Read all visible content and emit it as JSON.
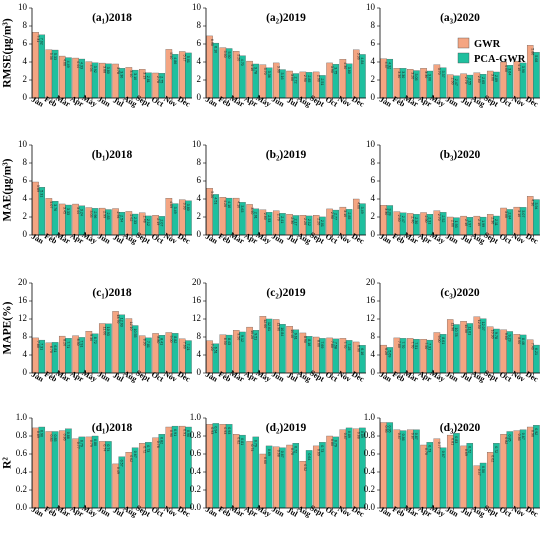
{
  "legend": {
    "gwr_label": "GWR",
    "pca_label": "PCA-GWR",
    "gwr_color": "#F4A582",
    "pca_color": "#1FBF9E"
  },
  "chart_data": {
    "type": "bar",
    "categories": [
      "Jan",
      "Feb",
      "Mar",
      "Apr",
      "May",
      "Jun",
      "Jul",
      "Aug",
      "Sept",
      "Oct",
      "Nov",
      "Dec"
    ],
    "years": [
      "2018",
      "2019",
      "2020"
    ],
    "metrics": [
      {
        "ylabel": "RMSE(μg/m³)",
        "ylim": [
          0,
          10
        ],
        "yticks": [
          0,
          2,
          4,
          6,
          8,
          10
        ],
        "panels": [
          {
            "title": "(a₁)2018",
            "gwr": [
              7.31,
              5.36,
              4.66,
              4.44,
              4.04,
              3.88,
              3.78,
              3.4,
              3.19,
              2.78,
              5.4,
              5.17
            ],
            "pca": [
              7.02,
              5.33,
              4.49,
              4.33,
              3.92,
              3.8,
              3.3,
              3.1,
              2.81,
              2.75,
              4.86,
              5.01
            ]
          },
          {
            "title": "(a₂)2019",
            "gwr": [
              6.9,
              5.6,
              5.2,
              4.1,
              3.7,
              3.9,
              3.0,
              2.9,
              2.9,
              3.9,
              4.3,
              5.36
            ],
            "pca": [
              6.1,
              5.5,
              4.7,
              3.78,
              3.36,
              3.16,
              2.72,
              2.85,
              2.51,
              3.75,
              3.8,
              4.84
            ]
          },
          {
            "title": "(a₃)2020",
            "gwr": [
              4.37,
              3.3,
              3.2,
              3.3,
              3.7,
              2.6,
              2.7,
              2.8,
              3.0,
              4.0,
              4.1,
              5.86
            ],
            "pca": [
              4.32,
              3.3,
              3.05,
              3.0,
              3.37,
              2.47,
              2.55,
              2.65,
              2.89,
              3.64,
              3.9,
              5.08
            ]
          }
        ]
      },
      {
        "ylabel": "MAE(μg/m³)",
        "ylim": [
          0,
          10
        ],
        "yticks": [
          0,
          2,
          4,
          6,
          8,
          10
        ],
        "panels": [
          {
            "title": "(b₁)2018",
            "gwr": [
              5.89,
              4.07,
              3.45,
              3.44,
              3.05,
              2.99,
              2.94,
              2.62,
              2.48,
              2.19,
              4.09,
              3.93
            ],
            "pca": [
              5.31,
              3.76,
              3.33,
              3.24,
              2.96,
              2.83,
              2.54,
              2.33,
              2.12,
              2.07,
              3.49,
              3.8
            ]
          },
          {
            "title": "(b₂)2019",
            "gwr": [
              5.2,
              4.2,
              4.1,
              3.4,
              2.8,
              2.7,
              2.3,
              2.2,
              2.2,
              2.9,
              3.1,
              4.0
            ],
            "pca": [
              4.51,
              4.1,
              3.63,
              2.91,
              2.53,
              2.41,
              2.17,
              2.12,
              2.01,
              2.77,
              2.85,
              3.49
            ]
          },
          {
            "title": "(b₃)2020",
            "gwr": [
              3.3,
              2.6,
              2.4,
              2.5,
              2.7,
              2.0,
              2.1,
              2.1,
              2.3,
              3.0,
              3.1,
              4.3
            ],
            "pca": [
              3.28,
              2.47,
              2.3,
              2.31,
              2.52,
              1.93,
              1.97,
              1.99,
              2.11,
              2.84,
              3.07,
              3.94
            ]
          }
        ]
      },
      {
        "ylabel": "MAPE(%)",
        "ylim": [
          0,
          20
        ],
        "yticks": [
          0,
          4,
          8,
          12,
          16,
          20
        ],
        "panels": [
          {
            "title": "(c₁)2018",
            "gwr": [
              7.8,
              6.7,
              8.2,
              8.3,
              9.3,
              11.0,
              13.7,
              12.1,
              8.3,
              8.8,
              9.0,
              7.6
            ],
            "pca": [
              7.31,
              6.81,
              7.71,
              7.91,
              8.72,
              10.93,
              12.93,
              10.55,
              7.81,
              8.41,
              8.82,
              7.21
            ]
          },
          {
            "title": "(c₂)2019",
            "gwr": [
              7.2,
              8.5,
              9.5,
              10.2,
              12.6,
              11.9,
              10.4,
              8.9,
              8.0,
              7.8,
              7.7,
              6.9
            ],
            "pca": [
              6.51,
              8.43,
              9.12,
              9.51,
              12.01,
              10.84,
              9.61,
              8.16,
              7.69,
              7.58,
              7.25,
              6.16
            ]
          },
          {
            "title": "(c₃)2020",
            "gwr": [
              6.2,
              7.8,
              7.7,
              7.5,
              9.0,
              11.9,
              11.5,
              12.5,
              10.3,
              9.6,
              8.6,
              7.4
            ],
            "pca": [
              5.69,
              7.7,
              7.51,
              7.31,
              8.61,
              10.78,
              11.01,
              12.07,
              9.78,
              9.23,
              8.46,
              6.21
            ]
          }
        ]
      },
      {
        "ylabel": "R²",
        "ylim": [
          0,
          1.0
        ],
        "yticks": [
          0,
          0.2,
          0.4,
          0.6,
          0.8,
          1.0
        ],
        "panels": [
          {
            "title": "(d₁)2018",
            "gwr": [
              0.89,
              0.85,
              0.86,
              0.77,
              0.79,
              0.74,
              0.49,
              0.62,
              0.72,
              0.78,
              0.9,
              0.91
            ],
            "pca": [
              0.9,
              0.85,
              0.88,
              0.79,
              0.8,
              0.74,
              0.57,
              0.67,
              0.73,
              0.82,
              0.91,
              0.9
            ]
          },
          {
            "title": "(d₂)2019",
            "gwr": [
              0.93,
              0.93,
              0.82,
              0.74,
              0.6,
              0.68,
              0.7,
              0.52,
              0.69,
              0.8,
              0.87,
              0.88
            ],
            "pca": [
              0.94,
              0.93,
              0.81,
              0.79,
              0.69,
              0.67,
              0.72,
              0.64,
              0.73,
              0.79,
              0.89,
              0.89
            ]
          },
          {
            "title": "(d₃)2020",
            "gwr": [
              0.95,
              0.87,
              0.87,
              0.7,
              0.77,
              0.81,
              0.69,
              0.47,
              0.62,
              0.82,
              0.86,
              0.9
            ],
            "pca": [
              0.95,
              0.86,
              0.87,
              0.73,
              0.67,
              0.83,
              0.72,
              0.5,
              0.72,
              0.85,
              0.87,
              0.92
            ]
          }
        ]
      }
    ]
  }
}
